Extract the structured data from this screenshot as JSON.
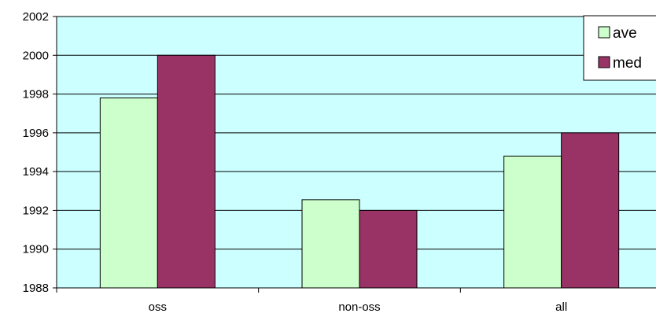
{
  "chart_data": {
    "type": "bar",
    "title": "",
    "xlabel": "",
    "ylabel": "",
    "categories": [
      "oss",
      "non-oss",
      "all"
    ],
    "series": [
      {
        "name": "ave",
        "values": [
          1997.8,
          1992.55,
          1994.8
        ],
        "color": "#ccffcc"
      },
      {
        "name": "med",
        "values": [
          2000,
          1992,
          1996
        ],
        "color": "#993366"
      }
    ],
    "ylim": [
      1988,
      2002
    ],
    "yticks": [
      1988,
      1990,
      1992,
      1994,
      1996,
      1998,
      2000,
      2002
    ],
    "grid": true,
    "legend_position": "top-right",
    "colors": {
      "plot_background": "#ccffff",
      "gridline": "#000000",
      "bar_outline": "#000000"
    }
  }
}
